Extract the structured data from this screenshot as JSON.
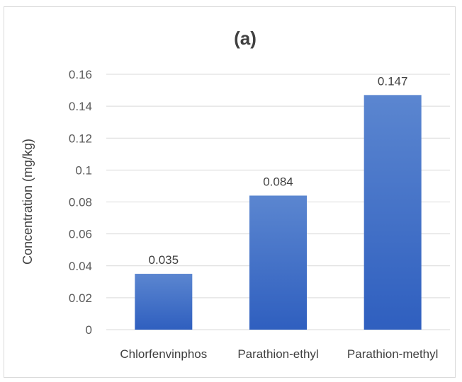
{
  "chart_data": {
    "type": "bar",
    "title": "(a)",
    "xlabel": "",
    "ylabel": "Concentration (mg/kg)",
    "categories": [
      "Chlorfenvinphos",
      "Parathion-ethyl",
      "Parathion-methyl"
    ],
    "values": [
      0.035,
      0.084,
      0.147
    ],
    "data_labels": [
      "0.035",
      "0.084",
      "0.147"
    ],
    "ylim": [
      0,
      0.16
    ],
    "yticks": [
      "0",
      "0.02",
      "0.04",
      "0.06",
      "0.08",
      "0.1",
      "0.12",
      "0.14",
      "0.16"
    ],
    "grid": true,
    "legend": "none",
    "bar_color_top": "#5b86d0",
    "bar_color_bottom": "#2f5fbf",
    "grid_color": "#d9d9d9"
  }
}
